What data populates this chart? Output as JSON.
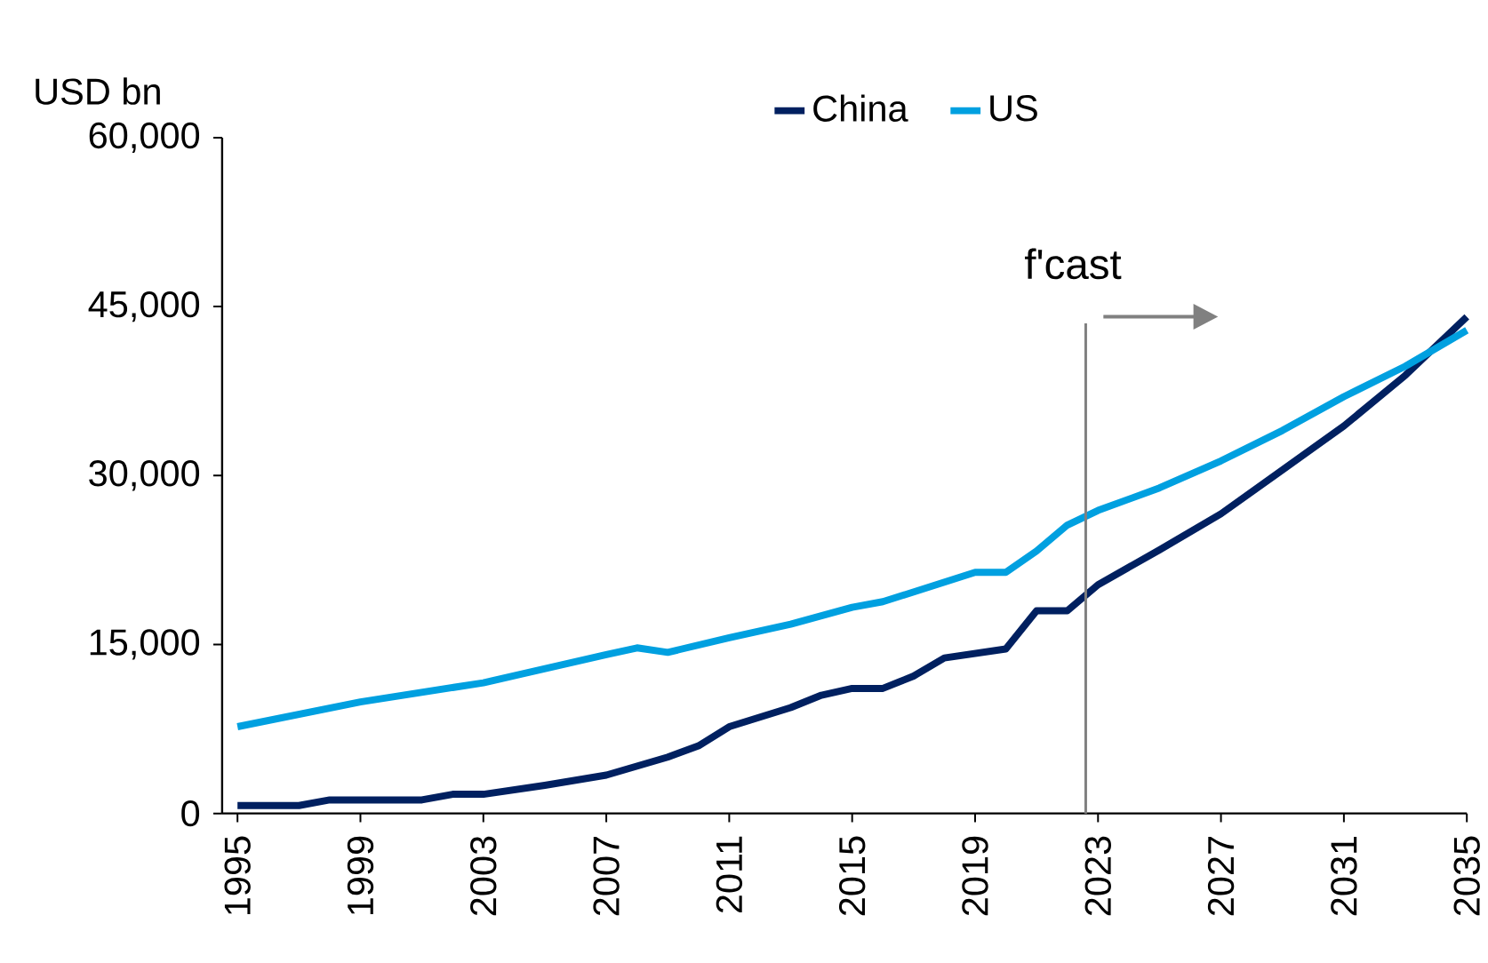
{
  "chart_data": {
    "type": "line",
    "ylabel": "USD bn",
    "xlim": [
      1994.5,
      2035
    ],
    "xticks": [
      1995,
      1999,
      2003,
      2007,
      2011,
      2015,
      2019,
      2023,
      2027,
      2031,
      2035
    ],
    "ylim": [
      0,
      60000
    ],
    "yticks": [
      {
        "value": 0,
        "label": "0"
      },
      {
        "value": 15000,
        "label": "15,000"
      },
      {
        "value": 30000,
        "label": "30,000"
      },
      {
        "value": 45000,
        "label": "45,000"
      },
      {
        "value": 60000,
        "label": "60,000"
      }
    ],
    "grid": false,
    "legend": "top",
    "marker": "none",
    "line_style": "solid",
    "ref_lines": [
      {
        "axis": "x",
        "value": 2022.6,
        "label": "f'cast",
        "color": "#808080"
      }
    ],
    "series": [
      {
        "name": "China",
        "color": "#002060",
        "x": [
          1995,
          1997,
          1998,
          2001,
          2002,
          2003,
          2005,
          2007,
          2009,
          2010,
          2011,
          2013,
          2014,
          2015,
          2016,
          2017,
          2018,
          2020,
          2021,
          2022,
          2023,
          2025,
          2027,
          2029,
          2031,
          2033,
          2035
        ],
        "values": [
          700,
          700,
          1200,
          1200,
          1700,
          1700,
          2500,
          3400,
          5000,
          6000,
          7700,
          9400,
          10500,
          11100,
          11100,
          12200,
          13800,
          14600,
          18000,
          18000,
          20300,
          23400,
          26600,
          30500,
          34400,
          38900,
          44100
        ]
      },
      {
        "name": "US",
        "color": "#00A0E0",
        "x": [
          1995,
          1999,
          2003,
          2007,
          2008,
          2009,
          2011,
          2013,
          2015,
          2016,
          2019,
          2020,
          2021,
          2022,
          2023,
          2025,
          2027,
          2029,
          2031,
          2033,
          2035
        ],
        "values": [
          7700,
          9900,
          11600,
          14100,
          14700,
          14300,
          15600,
          16800,
          18300,
          18800,
          21400,
          21400,
          23300,
          25600,
          26900,
          28900,
          31300,
          34000,
          37000,
          39700,
          42900
        ]
      }
    ]
  }
}
